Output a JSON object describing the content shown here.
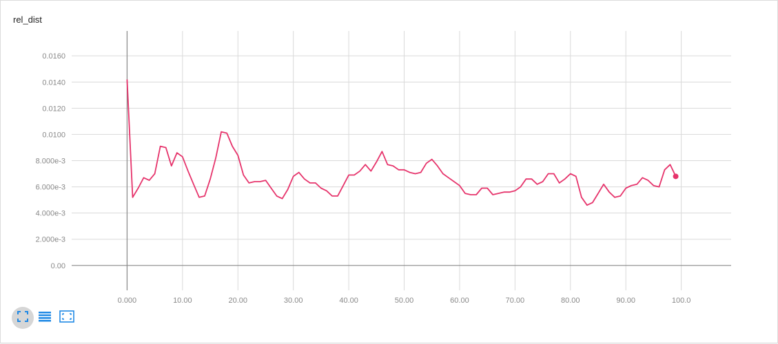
{
  "card": {
    "title": "rel_dist"
  },
  "colors": {
    "series": "#e6336b",
    "grid": "#d9d9d9",
    "axis": "#888888",
    "icon": "#1e88e5"
  },
  "controls": [
    {
      "name": "fit-domain-icon",
      "active": true
    },
    {
      "name": "toggle-log-scale-icon",
      "active": false
    },
    {
      "name": "expand-chart-icon",
      "active": false
    }
  ],
  "chart_data": {
    "type": "line",
    "title": "rel_dist",
    "xlabel": "",
    "ylabel": "",
    "xlim": [
      -10,
      109
    ],
    "ylim": [
      -0.0019,
      0.0179
    ],
    "grid": true,
    "x_ticks": [
      0,
      10,
      20,
      30,
      40,
      50,
      60,
      70,
      80,
      90,
      100
    ],
    "x_tick_labels": [
      "0.000",
      "10.00",
      "20.00",
      "30.00",
      "40.00",
      "50.00",
      "60.00",
      "70.00",
      "80.00",
      "90.00",
      "100.0"
    ],
    "y_ticks": [
      0,
      0.002,
      0.004,
      0.006,
      0.008,
      0.01,
      0.012,
      0.014,
      0.016
    ],
    "y_tick_labels": [
      "0.00",
      "2.000e-3",
      "4.000e-3",
      "6.000e-3",
      "8.000e-3",
      "0.0100",
      "0.0120",
      "0.0140",
      "0.0160"
    ],
    "series": [
      {
        "color": "#e6336b",
        "x": [
          0,
          1,
          2,
          3,
          4,
          5,
          6,
          7,
          8,
          9,
          10,
          11,
          12,
          13,
          14,
          15,
          16,
          17,
          18,
          19,
          20,
          21,
          22,
          23,
          24,
          25,
          26,
          27,
          28,
          29,
          30,
          31,
          32,
          33,
          34,
          35,
          36,
          37,
          38,
          39,
          40,
          41,
          42,
          43,
          44,
          45,
          46,
          47,
          48,
          49,
          50,
          51,
          52,
          53,
          54,
          55,
          56,
          57,
          58,
          59,
          60,
          61,
          62,
          63,
          64,
          65,
          66,
          67,
          68,
          69,
          70,
          71,
          72,
          73,
          74,
          75,
          76,
          77,
          78,
          79,
          80,
          81,
          82,
          83,
          84,
          85,
          86,
          87,
          88,
          89,
          90,
          91,
          92,
          93,
          94,
          95,
          96,
          97,
          98,
          99
        ],
        "values": [
          0.0142,
          0.0052,
          0.0059,
          0.0067,
          0.0065,
          0.007,
          0.0091,
          0.009,
          0.0076,
          0.0086,
          0.0083,
          0.0072,
          0.0062,
          0.0052,
          0.0053,
          0.0066,
          0.0082,
          0.0102,
          0.0101,
          0.0091,
          0.0084,
          0.0069,
          0.0063,
          0.0064,
          0.0064,
          0.0065,
          0.0059,
          0.0053,
          0.0051,
          0.0058,
          0.0068,
          0.0071,
          0.0066,
          0.0063,
          0.0063,
          0.0059,
          0.0057,
          0.0053,
          0.0053,
          0.0061,
          0.0069,
          0.0069,
          0.0072,
          0.0077,
          0.0072,
          0.0079,
          0.0087,
          0.0077,
          0.0076,
          0.0073,
          0.0073,
          0.0071,
          0.007,
          0.0071,
          0.0078,
          0.0081,
          0.0076,
          0.007,
          0.0067,
          0.0064,
          0.0061,
          0.0055,
          0.0054,
          0.0054,
          0.0059,
          0.0059,
          0.0054,
          0.0055,
          0.0056,
          0.0056,
          0.0057,
          0.006,
          0.0066,
          0.0066,
          0.0062,
          0.0064,
          0.007,
          0.007,
          0.0063,
          0.0066,
          0.007,
          0.0068,
          0.0052,
          0.0046,
          0.0048,
          0.0055,
          0.0062,
          0.0056,
          0.0052,
          0.0053,
          0.0059,
          0.0061,
          0.0062,
          0.0067,
          0.0065,
          0.0061,
          0.006,
          0.0073,
          0.0077,
          0.0068
        ]
      }
    ]
  }
}
